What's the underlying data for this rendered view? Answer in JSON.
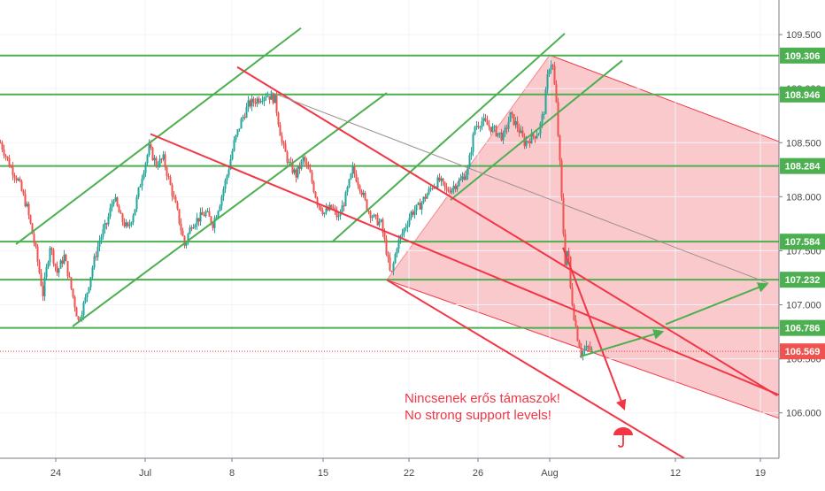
{
  "colors": {
    "green": "#4caf50",
    "red": "#f23645",
    "shade": "#f7b7bb",
    "candle_up": "#26a69a",
    "candle_down": "#ef5350",
    "current_price_label": "#ef5350",
    "level_label": "#4caf50",
    "axis_text": "#4a4a4a",
    "grey_trend": "#9e8f8f"
  },
  "annotations": {
    "line1": "Nincsenek erős támaszok!",
    "line2": "No strong support levels!",
    "umbrella_icon": "umbrella-icon"
  },
  "chart_data": {
    "type": "candlestick",
    "title": "",
    "xlabel": "",
    "ylabel": "",
    "ylim": [
      105.58,
      109.82
    ],
    "x_ticks": [
      "24",
      "Jul",
      "8",
      "15",
      "22",
      "26",
      "Aug",
      "12",
      "19"
    ],
    "y_ticks": [
      "109.500",
      "109.000",
      "108.500",
      "108.000",
      "107.500",
      "107.000",
      "106.500",
      "106.000"
    ],
    "y_tick_values": [
      109.5,
      109.0,
      108.5,
      108.0,
      107.5,
      107.0,
      106.5,
      106.0
    ],
    "levels": [
      {
        "label": "109.306",
        "value": 109.306
      },
      {
        "label": "108.946",
        "value": 108.946
      },
      {
        "label": "108.284",
        "value": 108.284
      },
      {
        "label": "107.584",
        "value": 107.584
      },
      {
        "label": "107.232",
        "value": 107.232
      },
      {
        "label": "106.786",
        "value": 106.786
      }
    ],
    "current_price": {
      "label": "106.569",
      "value": 106.569
    },
    "price_path": [
      [
        0,
        108.5
      ],
      [
        10,
        108.3
      ],
      [
        20,
        108.15
      ],
      [
        30,
        107.9
      ],
      [
        40,
        107.5
      ],
      [
        48,
        107.1
      ],
      [
        56,
        107.55
      ],
      [
        64,
        107.3
      ],
      [
        72,
        107.45
      ],
      [
        80,
        107.15
      ],
      [
        88,
        106.85
      ],
      [
        96,
        107.05
      ],
      [
        104,
        107.35
      ],
      [
        112,
        107.6
      ],
      [
        120,
        107.75
      ],
      [
        128,
        108.0
      ],
      [
        136,
        107.8
      ],
      [
        144,
        107.7
      ],
      [
        152,
        107.9
      ],
      [
        160,
        108.2
      ],
      [
        168,
        108.45
      ],
      [
        176,
        108.3
      ],
      [
        184,
        108.35
      ],
      [
        192,
        108.1
      ],
      [
        200,
        107.85
      ],
      [
        208,
        107.55
      ],
      [
        216,
        107.75
      ],
      [
        224,
        107.8
      ],
      [
        232,
        107.85
      ],
      [
        240,
        107.75
      ],
      [
        248,
        107.95
      ],
      [
        256,
        108.2
      ],
      [
        264,
        108.5
      ],
      [
        272,
        108.7
      ],
      [
        280,
        108.85
      ],
      [
        290,
        108.9
      ],
      [
        300,
        108.95
      ],
      [
        310,
        108.9
      ],
      [
        318,
        108.5
      ],
      [
        326,
        108.3
      ],
      [
        334,
        108.2
      ],
      [
        342,
        108.35
      ],
      [
        350,
        108.2
      ],
      [
        358,
        107.95
      ],
      [
        366,
        107.85
      ],
      [
        374,
        107.9
      ],
      [
        382,
        107.8
      ],
      [
        390,
        108.0
      ],
      [
        398,
        108.25
      ],
      [
        406,
        108.1
      ],
      [
        414,
        107.9
      ],
      [
        422,
        107.8
      ],
      [
        430,
        107.75
      ],
      [
        436,
        107.5
      ],
      [
        441,
        107.25
      ],
      [
        448,
        107.55
      ],
      [
        456,
        107.7
      ],
      [
        464,
        107.85
      ],
      [
        472,
        107.9
      ],
      [
        480,
        108.0
      ],
      [
        488,
        108.1
      ],
      [
        496,
        108.15
      ],
      [
        504,
        108.05
      ],
      [
        512,
        108.1
      ],
      [
        520,
        108.15
      ],
      [
        528,
        108.25
      ],
      [
        536,
        108.65
      ],
      [
        544,
        108.7
      ],
      [
        552,
        108.65
      ],
      [
        560,
        108.6
      ],
      [
        568,
        108.55
      ],
      [
        576,
        108.75
      ],
      [
        584,
        108.65
      ],
      [
        592,
        108.5
      ],
      [
        600,
        108.55
      ],
      [
        608,
        108.6
      ],
      [
        614,
        108.8
      ],
      [
        618,
        109.1
      ],
      [
        621,
        109.26
      ],
      [
        624,
        109.2
      ],
      [
        628,
        108.85
      ],
      [
        632,
        108.3
      ],
      [
        635,
        107.8
      ],
      [
        638,
        107.4
      ],
      [
        641,
        107.55
      ],
      [
        644,
        107.15
      ],
      [
        648,
        106.9
      ],
      [
        652,
        106.7
      ],
      [
        656,
        106.56
      ],
      [
        660,
        106.58
      ],
      [
        664,
        106.6
      ],
      [
        668,
        106.57
      ]
    ],
    "trend_lines": [
      {
        "kind": "green",
        "points": [
          [
            18,
            107.56
          ],
          [
            340,
            109.56
          ]
        ]
      },
      {
        "kind": "green",
        "points": [
          [
            82,
            106.8
          ],
          [
            437,
            108.96
          ]
        ]
      },
      {
        "kind": "green",
        "points": [
          [
            375,
            107.58
          ],
          [
            638,
            109.51
          ]
        ]
      },
      {
        "kind": "green",
        "points": [
          [
            509,
            107.97
          ],
          [
            703,
            109.26
          ]
        ]
      },
      {
        "kind": "red",
        "points": [
          [
            170,
            108.58
          ],
          [
            882,
            106.16
          ]
        ]
      },
      {
        "kind": "red",
        "points": [
          [
            268,
            109.2
          ],
          [
            878,
            106.16
          ]
        ]
      },
      {
        "kind": "red",
        "points": [
          [
            437,
            107.23
          ],
          [
            773,
            105.58
          ]
        ]
      },
      {
        "kind": "grey",
        "points": [
          [
            305,
            108.97
          ],
          [
            868,
            107.2
          ]
        ]
      }
    ],
    "arrows": [
      {
        "kind": "red",
        "points": [
          [
            636,
            107.53
          ],
          [
            705,
            106.04
          ]
        ]
      },
      {
        "kind": "green",
        "points": [
          [
            655,
            106.52
          ],
          [
            748,
            106.75
          ]
        ]
      },
      {
        "kind": "green",
        "points": [
          [
            752,
            106.82
          ],
          [
            866,
            107.19
          ]
        ]
      }
    ],
    "pitchfork_fill": {
      "outer": [
        [
          437,
          107.23
        ],
        [
          621,
          109.31
        ],
        [
          880,
          108.51
        ],
        [
          880,
          105.95
        ]
      ],
      "median": [
        [
          437,
          107.23
        ],
        [
          880,
          106.16
        ]
      ],
      "lower": [
        [
          437,
          107.23
        ],
        [
          880,
          105.95
        ]
      ]
    }
  }
}
